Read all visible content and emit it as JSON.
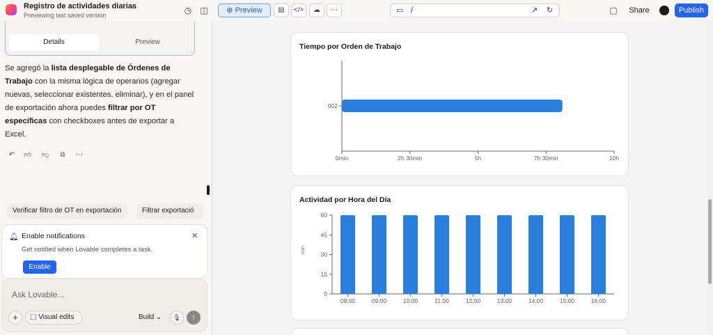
{
  "header": {
    "project_title": "Registro de actividades diarias",
    "project_subtitle": "Previewing last saved version",
    "preview_label": "Preview",
    "url_path": "/",
    "share_label": "Share",
    "publish_label": "Publish"
  },
  "chat": {
    "tabs": [
      {
        "label": "Details"
      },
      {
        "label": "Preview"
      }
    ],
    "message": {
      "p1": "Se agregó la ",
      "b1": "lista desplegable de Órdenes de Trabajo",
      "p2": " con la misma lógica de operarios (agregar nuevas, seleccionar existentes, eliminar), y en el panel de exportación ahora puedes ",
      "b2": "filtrar por OT específicas",
      "p3": " con checkboxes antes de exportar a Excel."
    },
    "suggestions": [
      {
        "label": "Verificar filtro de OT en exportación"
      },
      {
        "label": "Filtrar exportació"
      }
    ],
    "notification": {
      "title": "Enable notifications",
      "description": "Get notified when Lovable completes a task.",
      "button": "Enable"
    },
    "composer": {
      "placeholder": "Ask Lovable...",
      "visual_edits": "Visual edits",
      "build": "Build"
    }
  },
  "chart_data": [
    {
      "type": "bar",
      "orientation": "horizontal",
      "title": "Tiempo por Orden de Trabajo",
      "categories": [
        "002"
      ],
      "values": [
        8.1
      ],
      "value_unit": "hours",
      "xlim": [
        0,
        10
      ],
      "x_ticks": [
        0,
        2.5,
        5,
        7.5,
        10
      ],
      "x_tick_labels": [
        "0min",
        "2h 30min",
        "5h",
        "7h 30min",
        "10h"
      ],
      "color": "#2b7fdc"
    },
    {
      "type": "bar",
      "title": "Actividad por Hora del Día",
      "ylabel": "min",
      "categories": [
        "08:00",
        "09:00",
        "10:00",
        "11:00",
        "12:00",
        "13:00",
        "14:00",
        "15:00",
        "16:00"
      ],
      "values": [
        60,
        60,
        60,
        60,
        60,
        60,
        60,
        60,
        60
      ],
      "ylim": [
        0,
        60
      ],
      "y_ticks": [
        0,
        15,
        30,
        45,
        60
      ],
      "color": "#2b7fdc"
    }
  ]
}
